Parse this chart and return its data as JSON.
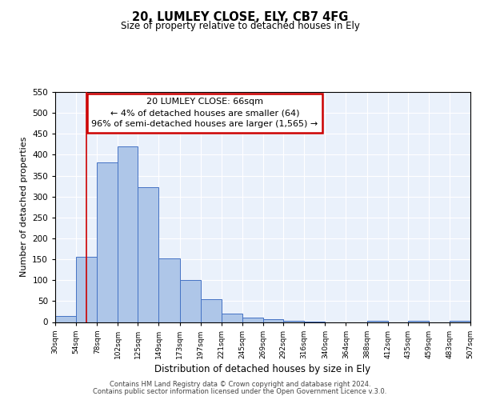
{
  "title": "20, LUMLEY CLOSE, ELY, CB7 4FG",
  "subtitle": "Size of property relative to detached houses in Ely",
  "xlabel": "Distribution of detached houses by size in Ely",
  "ylabel": "Number of detached properties",
  "bin_edges": [
    30,
    54,
    78,
    102,
    125,
    149,
    173,
    197,
    221,
    245,
    269,
    292,
    316,
    340,
    364,
    388,
    412,
    435,
    459,
    483,
    507
  ],
  "bar_heights": [
    15,
    155,
    382,
    420,
    322,
    152,
    100,
    54,
    20,
    10,
    7,
    2,
    1,
    0,
    0,
    3,
    0,
    2,
    0,
    2
  ],
  "bar_color": "#aec6e8",
  "bar_edge_color": "#4472c4",
  "property_line_x": 66,
  "property_line_color": "#cc0000",
  "annotation_line1": "20 LUMLEY CLOSE: 66sqm",
  "annotation_line2": "← 4% of detached houses are smaller (64)",
  "annotation_line3": "96% of semi-detached houses are larger (1,565) →",
  "annotation_box_color": "#cc0000",
  "ylim": [
    0,
    550
  ],
  "yticks": [
    0,
    50,
    100,
    150,
    200,
    250,
    300,
    350,
    400,
    450,
    500,
    550
  ],
  "tick_labels": [
    "30sqm",
    "54sqm",
    "78sqm",
    "102sqm",
    "125sqm",
    "149sqm",
    "173sqm",
    "197sqm",
    "221sqm",
    "245sqm",
    "269sqm",
    "292sqm",
    "316sqm",
    "340sqm",
    "364sqm",
    "388sqm",
    "412sqm",
    "435sqm",
    "459sqm",
    "483sqm",
    "507sqm"
  ],
  "footer_line1": "Contains HM Land Registry data © Crown copyright and database right 2024.",
  "footer_line2": "Contains public sector information licensed under the Open Government Licence v.3.0.",
  "background_color": "#eaf1fb",
  "grid_color": "#ffffff",
  "fig_bg_color": "#ffffff"
}
